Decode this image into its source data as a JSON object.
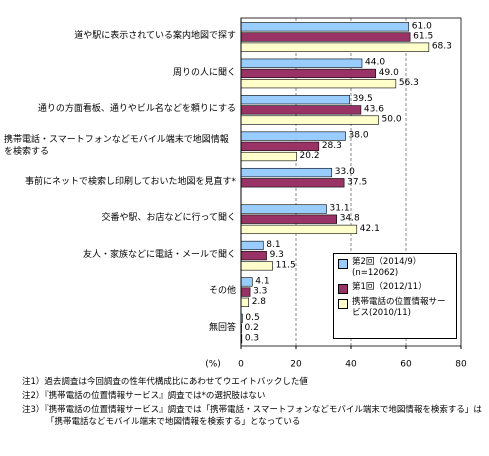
{
  "chart_data": {
    "type": "bar",
    "orientation": "horizontal",
    "categories": [
      "道や駅に表示されている案内地図で探す",
      "周りの人に聞く",
      "通りの方面看板、通りやビル名などを頼りにする",
      "携帯電話・スマートフォンなどモバイル端末で地図情報を検索する",
      "事前にネットで検索し印刷しておいた地図を見直す*",
      "交番や駅、お店などに行って聞く",
      "友人・家族などに電話・メールで聞く",
      "その他",
      "無回答"
    ],
    "series": [
      {
        "name": "第2回（2014/9）(n=12062)",
        "color": "#99ccff",
        "values": [
          61.0,
          44.0,
          39.5,
          38.0,
          33.0,
          31.1,
          8.1,
          4.1,
          0.5
        ],
        "value_labels": [
          "61.0",
          "44.0",
          "39.5",
          "38.0",
          "33.0",
          "31.1",
          "8.1",
          "4.1",
          "0.5"
        ]
      },
      {
        "name": "第1回（2012/11）",
        "color": "#993366",
        "values": [
          61.5,
          49.0,
          43.6,
          28.3,
          37.5,
          34.8,
          9.3,
          3.3,
          0.2
        ],
        "value_labels": [
          "61.5",
          "49.0",
          "43.6",
          "28.3",
          "37.5",
          "34.8",
          "9.3",
          "3.3",
          "0.2"
        ]
      },
      {
        "name": "携帯電話の位置情報サービス(2010/11)",
        "color": "#ffffcc",
        "values": [
          68.3,
          56.3,
          50.0,
          20.2,
          null,
          42.1,
          11.5,
          2.8,
          0.3
        ],
        "value_labels": [
          "68.3",
          "56.3",
          "50.0",
          "20.2",
          null,
          "42.1",
          "11.5",
          "2.8",
          "0.3"
        ]
      }
    ],
    "xlim": [
      0,
      80
    ],
    "xticks": [
      0,
      20,
      40,
      60,
      80
    ],
    "x_unit": "(%)",
    "grid": true,
    "legend": "lower right",
    "notes": [
      "注1）過去調査は今回調査の性年代構成比にあわせてウエイトバックした値",
      "注2）『携帯電話の位置情報サービス』調査では*の選択肢はない",
      "注3）『携帯電話の位置情報サービス』調査では「携帯電話・スマートフォンなどモバイル端末で地図情報を検索する」は「携帯電話などモバイル端末で地図情報を検索する」となっている"
    ]
  }
}
